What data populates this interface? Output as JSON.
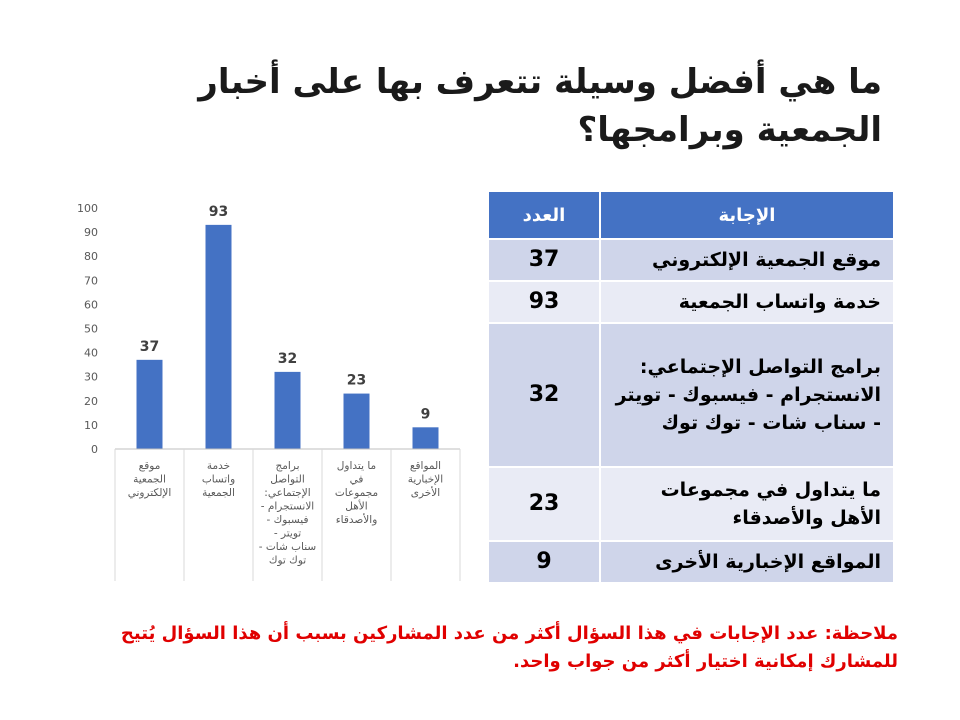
{
  "slide": {
    "title": "ما هي أفضل وسيلة تتعرف بها على أخبار الجمعية وبرامجها؟",
    "note": "ملاحظة: عدد الإجابات في هذا السؤال أكثر من عدد المشاركين بسبب أن هذا السؤال يُتيح للمشارك إمكانية اختيار أكثر من جواب واحد."
  },
  "table": {
    "header_answer": "الإجابة",
    "header_count": "العدد",
    "rows": [
      {
        "answer": "موقع الجمعية الإلكتروني",
        "count": "37"
      },
      {
        "answer": "خدمة واتساب الجمعية",
        "count": "93"
      },
      {
        "answer": "برامج التواصل الإجتماعي: الانستجرام - فيسبوك - تويتر - سناب شات - توك توك",
        "count": "32"
      },
      {
        "answer": "ما يتداول في مجموعات الأهل والأصدقاء",
        "count": "23"
      },
      {
        "answer": "المواقع الإخبارية الأخرى",
        "count": "9"
      }
    ]
  },
  "chart_data": {
    "type": "bar",
    "categories": [
      "موقع الجمعية الإلكتروني",
      "خدمة واتساب الجمعية",
      "برامج التواصل الإجتماعي: الانستجرام - فيسبوك - تويتر - سناب شات - توك توك",
      "ما يتداول في مجموعات الأهل والأصدقاء",
      "المواقع الإخبارية الأخرى"
    ],
    "category_lines": [
      [
        "موقع",
        "الجمعية",
        "الإلكتروني"
      ],
      [
        "خدمة",
        "واتساب",
        "الجمعية"
      ],
      [
        "برامج",
        "التواصل",
        "الإجتماعي:",
        "الانستجرام -",
        "فيسبوك -",
        "تويتر -",
        "سناب شات -",
        "توك توك"
      ],
      [
        "ما يتداول",
        "في",
        "مجموعات",
        "الأهل",
        "والأصدقاء"
      ],
      [
        "المواقع",
        "الإخبارية",
        "الأخرى"
      ]
    ],
    "values": [
      37,
      93,
      32,
      23,
      9
    ],
    "data_labels": [
      "37",
      "93",
      "32",
      "23",
      "9"
    ],
    "yticks": [
      0,
      10,
      20,
      30,
      40,
      50,
      60,
      70,
      80,
      90,
      100
    ],
    "ylim": [
      0,
      100
    ],
    "grid": false,
    "bar_color": "#4472c4"
  }
}
